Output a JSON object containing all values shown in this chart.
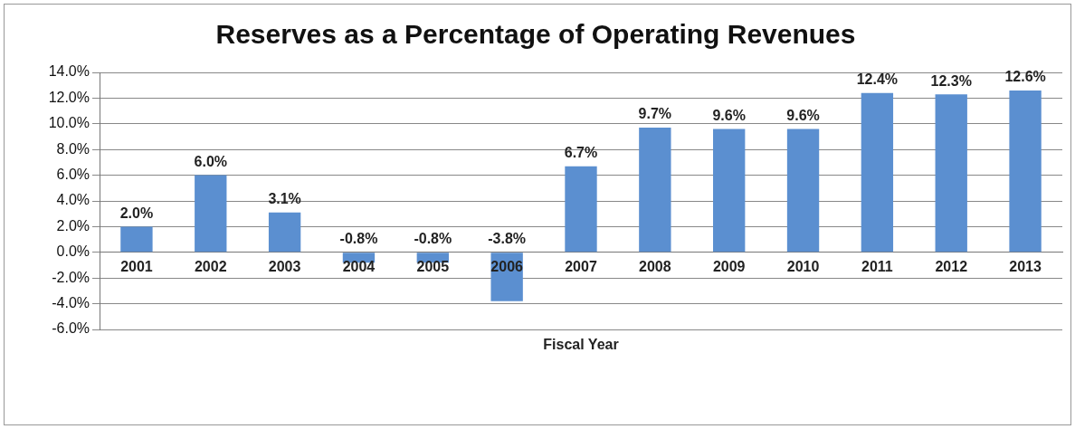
{
  "chart_data": {
    "type": "bar",
    "title": "Reserves as a Percentage of Operating Revenues",
    "xlabel": "Fiscal Year",
    "categories": [
      "2001",
      "2002",
      "2003",
      "2004",
      "2005",
      "2006",
      "2007",
      "2008",
      "2009",
      "2010",
      "2011",
      "2012",
      "2013"
    ],
    "values": [
      2.0,
      6.0,
      3.1,
      -0.8,
      -0.8,
      -3.8,
      6.7,
      9.7,
      9.6,
      9.6,
      12.4,
      12.3,
      12.6
    ],
    "value_labels": [
      "2.0%",
      "6.0%",
      "3.1%",
      "-0.8%",
      "-0.8%",
      "-3.8%",
      "6.7%",
      "9.7%",
      "9.6%",
      "9.6%",
      "12.4%",
      "12.3%",
      "12.6%"
    ],
    "color": "#5b8fd0",
    "ylim": [
      -6,
      14
    ],
    "yticks": [
      {
        "value": -6,
        "label": "-6.0%"
      },
      {
        "value": -4,
        "label": "-4.0%"
      },
      {
        "value": -2,
        "label": "-2.0%"
      },
      {
        "value": 0,
        "label": "0.0%"
      },
      {
        "value": 2,
        "label": "2.0%"
      },
      {
        "value": 4,
        "label": "4.0%"
      },
      {
        "value": 6,
        "label": "6.0%"
      },
      {
        "value": 8,
        "label": "8.0%"
      },
      {
        "value": 10,
        "label": "10.0%"
      },
      {
        "value": 12,
        "label": "12.0%"
      },
      {
        "value": 14,
        "label": "14.0%"
      }
    ],
    "grid": "y"
  }
}
